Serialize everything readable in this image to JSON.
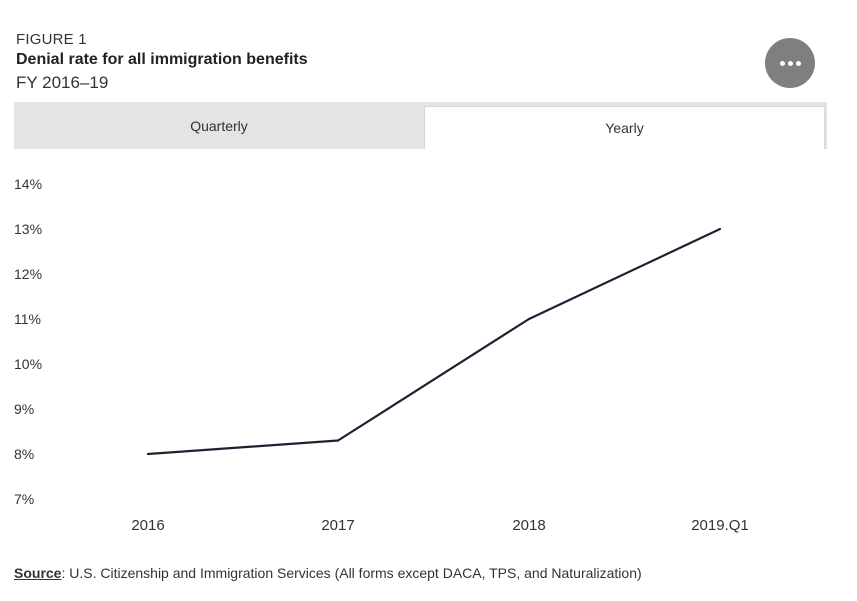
{
  "header": {
    "figure_label": "FIGURE 1",
    "title": "Denial rate for all immigration benefits",
    "subtitle": "FY 2016–19"
  },
  "more_button": {
    "icon": "more-horizontal-icon",
    "color": "#7f7f7f"
  },
  "tabs": [
    {
      "label": "Quarterly",
      "selected": false
    },
    {
      "label": "Yearly",
      "selected": true
    }
  ],
  "chart_data": {
    "type": "line",
    "title": "Denial rate for all immigration benefits",
    "subtitle": "FY 2016–19",
    "categories": [
      "2016",
      "2017",
      "2018",
      "2019.Q1"
    ],
    "series": [
      {
        "values": [
          8.0,
          8.3,
          11.0,
          13.0
        ],
        "color": "#221f33"
      }
    ],
    "ylim": [
      7,
      14
    ],
    "yticks": [
      14,
      13,
      12,
      11,
      10,
      9,
      8,
      7
    ],
    "ytick_format": "{v}%",
    "grid": false,
    "legend": "none"
  },
  "source": {
    "label": "Source",
    "text": ": U.S. Citizenship and Immigration Services (All forms except DACA, TPS, and Naturalization)"
  }
}
